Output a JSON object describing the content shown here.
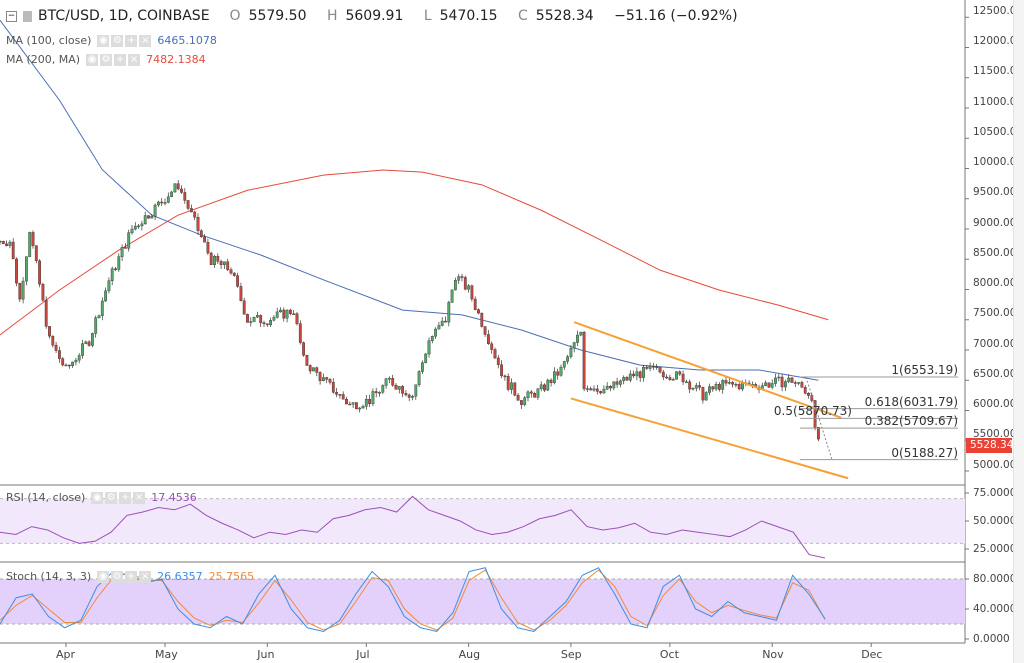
{
  "header": {
    "symbol": "BTC/USD, 1D, COINBASE",
    "open_label": "O",
    "open": "5579.50",
    "high_label": "H",
    "high": "5609.91",
    "low_label": "L",
    "low": "5470.15",
    "close_label": "C",
    "close": "5528.34",
    "change": "−51.16 (−0.92%)"
  },
  "indicators": {
    "ma100": {
      "label": "MA (100, close)",
      "value": "6465.1078",
      "color": "#4a6fb5"
    },
    "ma200": {
      "label": "MA (200, MA)",
      "value": "7482.1384",
      "color": "#e84a3c"
    },
    "rsi": {
      "label": "RSI (14, close)",
      "value": "17.4536",
      "color": "#9c4fb8"
    },
    "stoch": {
      "label": "Stoch (14, 3, 3)",
      "k_value": "26.6357",
      "d_value": "25.7565",
      "k_color": "#3d8fe0",
      "d_color": "#f08a3c"
    }
  },
  "price_axis": [
    "12500.00",
    "12000.00",
    "11500.00",
    "11000.00",
    "10500.00",
    "10000.00",
    "9500.00",
    "9000.00",
    "8500.00",
    "8000.00",
    "7500.00",
    "7000.00",
    "6500.00",
    "6000.00",
    "5500.00",
    "5000.00"
  ],
  "rsi_axis": [
    "75.0000",
    "50.0000",
    "25.0000"
  ],
  "stoch_axis": [
    "80.0000",
    "40.0000",
    "0.0000"
  ],
  "time_axis": [
    "Apr",
    "May",
    "Jun",
    "Jul",
    "Aug",
    "Sep",
    "Oct",
    "Nov",
    "Dec"
  ],
  "last_price": "5528.34",
  "fib_levels": [
    {
      "label": "1(6553.19)",
      "value": 6553.19
    },
    {
      "label": "0.618(6031.79)",
      "value": 6031.79
    },
    {
      "label": "0.5(5870.73)",
      "value": 5870.73
    },
    {
      "label": "0.382(5709.67)",
      "value": 5709.67
    },
    {
      "label": "0(5188.27)",
      "value": 5188.27
    }
  ],
  "chart_data": {
    "type": "candlestick",
    "colors": {
      "up": "#53a86b",
      "down": "#c9463d",
      "channel": "#f7a035"
    },
    "close_anchors": [
      [
        "2018-03-12",
        8800
      ],
      [
        "2018-03-15",
        8800
      ],
      [
        "2018-03-18",
        7830
      ],
      [
        "2018-03-21",
        9000
      ],
      [
        "2018-03-27",
        7160
      ],
      [
        "2018-04-01",
        6670
      ],
      [
        "2018-04-08",
        7160
      ],
      [
        "2018-04-14",
        8150
      ],
      [
        "2018-04-21",
        9000
      ],
      [
        "2018-04-27",
        9300
      ],
      [
        "2018-05-05",
        9730
      ],
      [
        "2018-05-09",
        9230
      ],
      [
        "2018-05-15",
        8490
      ],
      [
        "2018-05-21",
        8320
      ],
      [
        "2018-05-26",
        7500
      ],
      [
        "2018-06-01",
        7500
      ],
      [
        "2018-06-09",
        7660
      ],
      [
        "2018-06-12",
        6830
      ],
      [
        "2018-06-18",
        6500
      ],
      [
        "2018-06-26",
        6090
      ],
      [
        "2018-07-02",
        6170
      ],
      [
        "2018-07-08",
        6500
      ],
      [
        "2018-07-15",
        6250
      ],
      [
        "2018-07-20",
        7160
      ],
      [
        "2018-07-25",
        7500
      ],
      [
        "2018-07-28",
        8240
      ],
      [
        "2018-08-01",
        7990
      ],
      [
        "2018-08-06",
        7330
      ],
      [
        "2018-08-12",
        6500
      ],
      [
        "2018-08-17",
        6170
      ],
      [
        "2018-08-23",
        6340
      ],
      [
        "2018-08-29",
        6670
      ],
      [
        "2018-09-04",
        7300
      ],
      [
        "2018-09-05",
        6420
      ],
      [
        "2018-09-12",
        6340
      ],
      [
        "2018-09-20",
        6590
      ],
      [
        "2018-09-26",
        6670
      ],
      [
        "2018-10-05",
        6540
      ],
      [
        "2018-10-11",
        6250
      ],
      [
        "2018-10-16",
        6420
      ],
      [
        "2018-10-28",
        6420
      ],
      [
        "2018-11-07",
        6500
      ],
      [
        "2018-11-13",
        6250
      ],
      [
        "2018-11-14",
        5640
      ],
      [
        "2018-11-15",
        5528
      ]
    ],
    "ma100": [
      [
        "2018-03-12",
        12450
      ],
      [
        "2018-03-30",
        11130
      ],
      [
        "2018-04-12",
        9980
      ],
      [
        "2018-04-27",
        9230
      ],
      [
        "2018-05-12",
        8900
      ],
      [
        "2018-05-30",
        8570
      ],
      [
        "2018-06-18",
        8160
      ],
      [
        "2018-07-12",
        7660
      ],
      [
        "2018-07-30",
        7580
      ],
      [
        "2018-08-17",
        7330
      ],
      [
        "2018-09-04",
        7000
      ],
      [
        "2018-09-22",
        6750
      ],
      [
        "2018-10-10",
        6670
      ],
      [
        "2018-10-28",
        6670
      ],
      [
        "2018-11-15",
        6500
      ]
    ],
    "ma200": [
      [
        "2018-03-12",
        7250
      ],
      [
        "2018-03-30",
        7990
      ],
      [
        "2018-04-17",
        8650
      ],
      [
        "2018-05-05",
        9230
      ],
      [
        "2018-05-26",
        9640
      ],
      [
        "2018-06-18",
        9890
      ],
      [
        "2018-07-06",
        9975
      ],
      [
        "2018-07-18",
        9940
      ],
      [
        "2018-08-05",
        9730
      ],
      [
        "2018-08-23",
        9310
      ],
      [
        "2018-09-10",
        8820
      ],
      [
        "2018-09-28",
        8320
      ],
      [
        "2018-10-16",
        7990
      ],
      [
        "2018-11-03",
        7740
      ],
      [
        "2018-11-18",
        7500
      ]
    ],
    "channel_upper": [
      [
        "2018-09-02",
        7460
      ],
      [
        "2018-11-22",
        5880
      ]
    ],
    "channel_lower": [
      [
        "2018-09-01",
        6200
      ],
      [
        "2018-11-24",
        4880
      ]
    ],
    "rsi": [
      40,
      38,
      45,
      42,
      35,
      30,
      32,
      40,
      55,
      58,
      62,
      60,
      65,
      55,
      48,
      42,
      35,
      40,
      38,
      42,
      40,
      52,
      55,
      60,
      62,
      58,
      72,
      60,
      55,
      50,
      42,
      38,
      40,
      45,
      52,
      55,
      60,
      45,
      42,
      44,
      48,
      40,
      38,
      42,
      40,
      38,
      36,
      42,
      50,
      45,
      40,
      20,
      17
    ],
    "stoch_k": [
      20,
      55,
      60,
      30,
      15,
      25,
      70,
      90,
      85,
      75,
      80,
      40,
      20,
      15,
      30,
      20,
      60,
      85,
      40,
      15,
      10,
      25,
      60,
      90,
      70,
      30,
      15,
      10,
      35,
      90,
      95,
      40,
      15,
      10,
      30,
      50,
      85,
      95,
      60,
      20,
      15,
      70,
      85,
      40,
      30,
      50,
      35,
      30,
      25,
      85,
      60,
      27
    ],
    "stoch_d": [
      25,
      45,
      58,
      40,
      22,
      22,
      55,
      82,
      88,
      78,
      78,
      50,
      28,
      18,
      25,
      22,
      48,
      78,
      52,
      22,
      12,
      20,
      50,
      82,
      78,
      40,
      20,
      12,
      28,
      78,
      92,
      55,
      22,
      12,
      25,
      45,
      75,
      92,
      70,
      30,
      18,
      58,
      80,
      50,
      35,
      45,
      38,
      32,
      28,
      75,
      65,
      26
    ],
    "rsi_band": [
      30,
      70
    ],
    "stoch_band": [
      20,
      80
    ]
  }
}
